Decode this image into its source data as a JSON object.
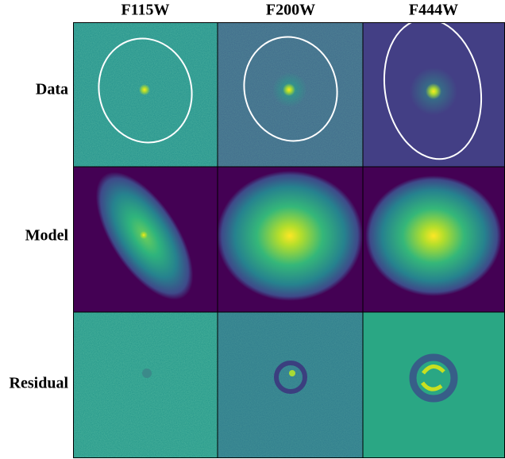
{
  "figure": {
    "columns": [
      "F115W",
      "F200W",
      "F444W"
    ],
    "rows": [
      "Data",
      "Model",
      "Residual"
    ]
  }
}
